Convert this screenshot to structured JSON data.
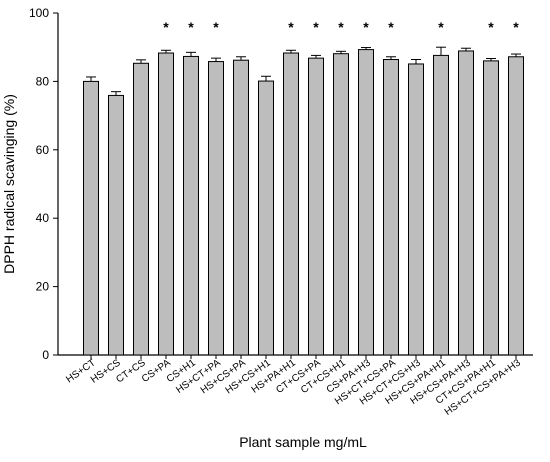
{
  "chart_data": {
    "type": "bar",
    "title": "",
    "xlabel": "Plant sample mg/mL",
    "ylabel": "DPPH radical scavinging (%)",
    "ylim": [
      0,
      100
    ],
    "yticks": [
      0,
      20,
      40,
      60,
      80,
      100
    ],
    "grid": false,
    "categories": [
      "HS+CT",
      "HS+CS",
      "CT+CS",
      "CS+PA",
      "CS+H1",
      "HS+CT+PA",
      "HS+CS+PA",
      "HS+CS+H1",
      "HS+PA+H1",
      "CT+CS+PA",
      "CT+CS+H1",
      "CS+PA+H3",
      "HS+CT+CS+PA",
      "HS+CT+CS+H3",
      "HS+CS+PA+H1",
      "HS+CS+PA+H3",
      "CT+CS+PA+H1",
      "HS+CT+CS+PA+H3"
    ],
    "values": [
      80.0,
      75.9,
      85.3,
      88.3,
      87.3,
      85.8,
      86.2,
      80.1,
      88.3,
      86.8,
      88.1,
      89.3,
      86.4,
      85.1,
      87.6,
      88.9,
      86.0,
      87.2
    ],
    "errors": [
      1.3,
      1.1,
      1.0,
      0.8,
      1.2,
      1.0,
      1.0,
      1.4,
      0.8,
      0.8,
      0.7,
      0.6,
      0.8,
      1.3,
      2.4,
      0.8,
      0.7,
      0.8
    ],
    "significance_marks": [
      "",
      "",
      "",
      "*",
      "*",
      "*",
      "",
      "",
      "*",
      "*",
      "*",
      "*",
      "*",
      "",
      "*",
      "",
      "*",
      "*"
    ],
    "bar_color": "#bdbdbd",
    "edge_color": "#000000"
  }
}
